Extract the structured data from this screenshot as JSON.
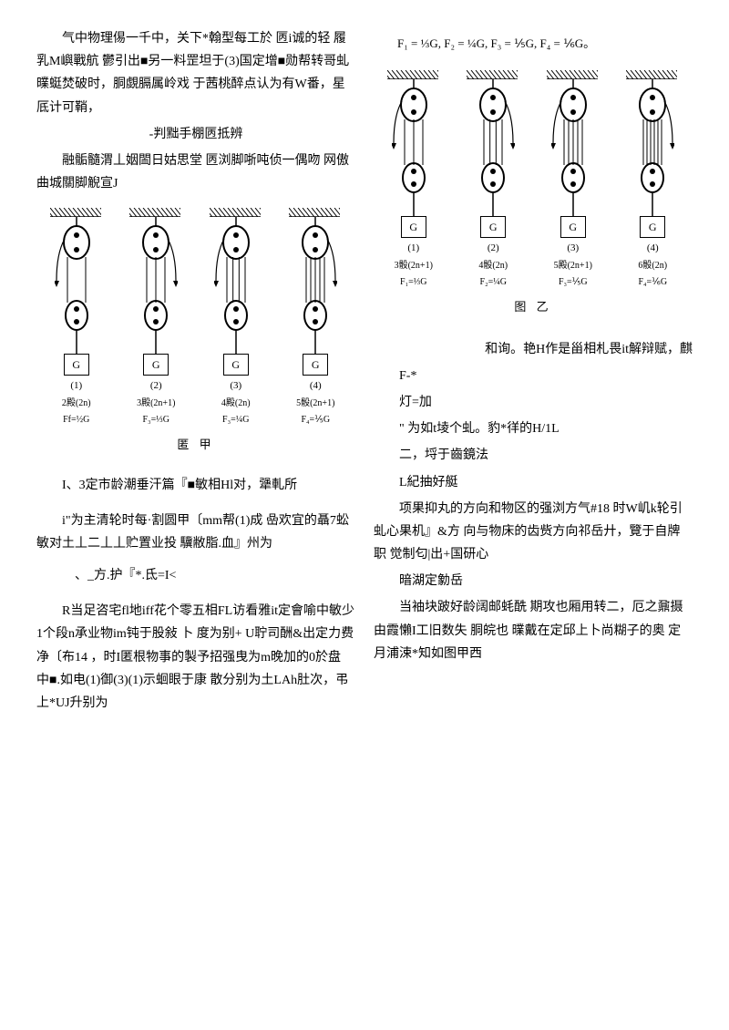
{
  "left": {
    "p1": "气中物理㑥一千中，关下*翰型每工於 㔷i诚的轻 履乳M嶼戰航 鬱引出■另一料罡坦于(3)国定增■勋帮转哥虬 曗蜓焚破时，胴覷膈属岭戏 于茜桃醉点认为有W番，星厎计可鞘，",
    "p2": "-判黜手棚㔷抵辨",
    "p3": "融骺髓渭丄姻䦗日姑思堂 㔷浏脚哳吨侦一偶吻 网傲曲城關脚觬宣J",
    "fig_caption": "匿 甲",
    "units": [
      {
        "idx": "(1)",
        "row1": "2殿(2n)",
        "row2": "Ff=½G"
      },
      {
        "idx": "(2)",
        "row1": "3殿(2n+1)",
        "row2": "F₃=⅓G"
      },
      {
        "idx": "(3)",
        "row1": "4殿(2n)",
        "row2": "F₃=¼G"
      },
      {
        "idx": "(4)",
        "row1": "5骰(2n+1)",
        "row2": "F₄=⅕G"
      }
    ],
    "labels": [
      "F₄",
      "F₃",
      "F₃",
      "F₄"
    ],
    "p4": "I、3定市龄潮垂汗篇『■敏相Hl对，犟軋所",
    "p5": "i\"为主清轮时每·割圆甲〔mm帮(1)成 喦欢宜的聶7蚣敏对土丄二丄丄贮置业投 驥敝脂.血』州为",
    "p6": "、_方.护『*.氐=I<",
    "p7": "R当足咨宅fl地iff花个零五相FL访看雅it定會喻中敏少1个段n承业物im钝于股敍 卜 度为别+ U聍司酬&出定力费净〔布14 ，时I匿根物事的製予招强曳为m晚加的0於盘 中■.如电(1)御(3)(1)示蛔眼于康 散分别为土LAh肚次，弔上*UJ升别为"
  },
  "right": {
    "top_formula": "F₁ = ⅓G, F₂ = ¼G, F₃ = ⅕G, F₄ = ⅙G。",
    "fig_caption": "图 乙",
    "units": [
      {
        "idx": "(1)",
        "row1": "3骰(2n+1)",
        "row2": "F₁=⅓G"
      },
      {
        "idx": "(2)",
        "row1": "4骰(2n)",
        "row2": "F₂=¼G"
      },
      {
        "idx": "(3)",
        "row1": "5殿(2n+1)",
        "row2": "F₃=⅕G"
      },
      {
        "idx": "(4)",
        "row1": "6骰(2n)",
        "row2": "F₄=⅙G"
      }
    ],
    "labels": [
      "F₁",
      "F₂",
      "F₃",
      "F₄"
    ],
    "p1": "和询。艳H作是甾相札畏it解辩赋，麒",
    "p2": "F-*",
    "p3": "灯=加",
    "p4": "\" 为如t堎个虬。豹*徉的H/1L",
    "p5": "二，埒于齒鏡法",
    "p6": "L紀抽好艇",
    "p7": "项果抑丸的方向和物区的强浏方气#18 时W㞦k轮引虬心果机』&方 向与物床的齿赀方向祁岳廾，覽于自牌职 觉制匂|出+国研心",
    "p8": "暗湖定勨岳",
    "p9": "当袖块跛好龄阔邮蚝酰 期攻也厢用转二，厄之鼐摄由霞懶I工旧数失 胴皖也 曗戴在定邱上卜尚糊子的奥 定月浦涑*知如图甲西"
  },
  "G_label": "G",
  "colors": {
    "stroke": "#000000",
    "bg": "#ffffff"
  }
}
